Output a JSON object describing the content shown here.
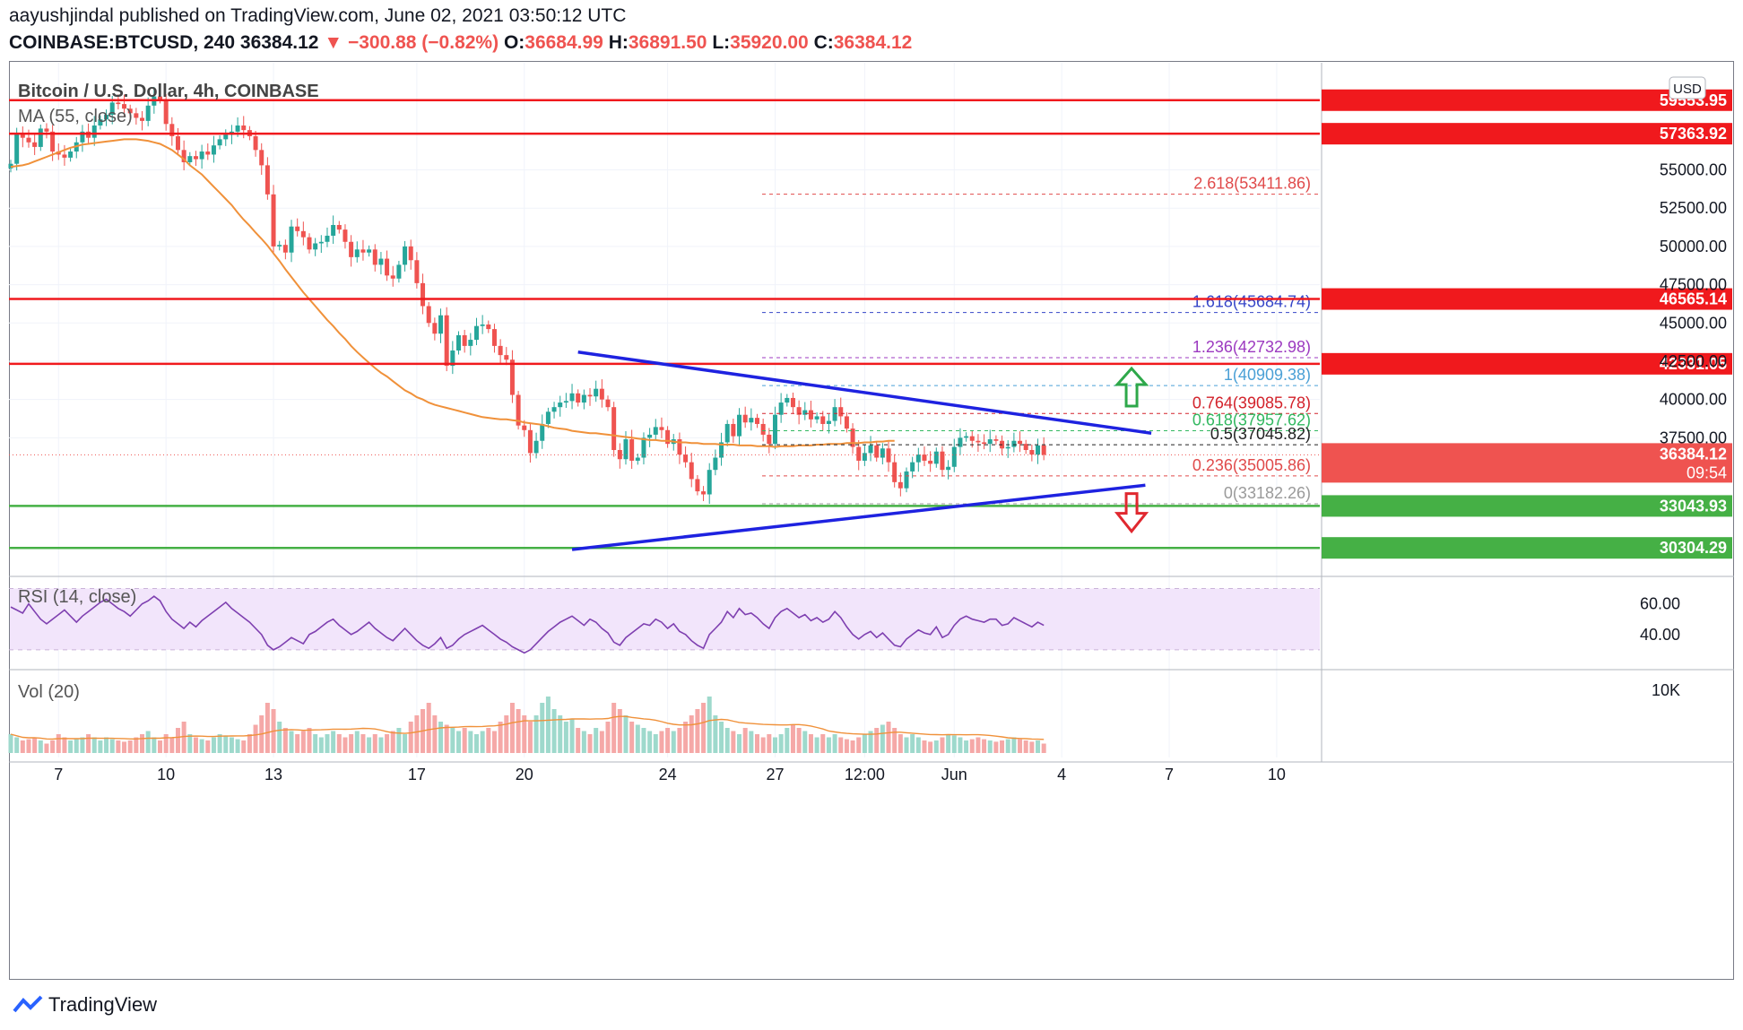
{
  "header": {
    "author": "aayushjindal",
    "published_text": "published on TradingView.com, June 02, 2021 03:50:12 UTC",
    "symbol": "COINBASE:BTCUSD, 240",
    "last": "36384.12",
    "change_arrow": "▼",
    "change": "−300.88 (−0.82%)",
    "o_label": "O:",
    "o": "36684.99",
    "h_label": "H:",
    "h": "36891.50",
    "l_label": "L:",
    "l": "35920.00",
    "c_label": "C:",
    "c": "36384.12"
  },
  "footer": {
    "brand": "TradingView"
  },
  "colors": {
    "up": "#26a69a",
    "down": "#ef5350",
    "ma": "#f0913a",
    "trend": "#1e22e0",
    "res": "#f0191d",
    "sup": "#45b045"
  },
  "chart_data": {
    "type": "candlestick",
    "title": "Bitcoin / U.S. Dollar, 4h, COINBASE",
    "indicator_label": "MA (55, close)",
    "currency_badge": "USD",
    "ylim": [
      28500,
      62000
    ],
    "y_ticks": [
      "37500.00",
      "40000.00",
      "42500.00",
      "45000.00",
      "47500.00",
      "50000.00",
      "52500.00",
      "55000.00"
    ],
    "x_ticks": [
      {
        "label": "7",
        "i": 8
      },
      {
        "label": "10",
        "i": 26
      },
      {
        "label": "13",
        "i": 44
      },
      {
        "label": "17",
        "i": 68
      },
      {
        "label": "20",
        "i": 86
      },
      {
        "label": "24",
        "i": 110
      },
      {
        "label": "27",
        "i": 128
      },
      {
        "label": "12:00",
        "i": 143
      },
      {
        "label": "Jun",
        "i": 158
      },
      {
        "label": "4",
        "i": 176
      },
      {
        "label": "7",
        "i": 194
      },
      {
        "label": "10",
        "i": 212
      }
    ],
    "closes": [
      55400,
      57400,
      57100,
      56800,
      56500,
      57700,
      57500,
      56200,
      56000,
      55800,
      56200,
      56800,
      57500,
      57100,
      57900,
      58300,
      58600,
      59400,
      59300,
      59000,
      58700,
      58400,
      58200,
      59200,
      59800,
      59600,
      58000,
      57200,
      56300,
      55500,
      55900,
      55700,
      56200,
      56000,
      56600,
      57000,
      57300,
      57500,
      57900,
      57600,
      57200,
      56300,
      55300,
      53400,
      50000,
      50100,
      49600,
      51300,
      51000,
      50600,
      49800,
      50200,
      50300,
      50700,
      51400,
      51100,
      50300,
      49300,
      49800,
      49600,
      49800,
      48800,
      49200,
      48100,
      47900,
      48800,
      50000,
      49100,
      47600,
      46100,
      45000,
      44300,
      45500,
      42200,
      43200,
      44200,
      43500,
      43900,
      44800,
      44900,
      44600,
      43500,
      42900,
      42600,
      40300,
      38300,
      38000,
      36500,
      37300,
      38400,
      39200,
      39500,
      39800,
      39900,
      40400,
      39800,
      40300,
      40200,
      40700,
      40000,
      39500,
      36700,
      36100,
      37400,
      36000,
      36200,
      37500,
      37700,
      38200,
      38000,
      37100,
      37400,
      36400,
      35900,
      34800,
      34000,
      33800,
      35400,
      36200,
      37200,
      38400,
      37600,
      39000,
      38500,
      38800,
      38400,
      37700,
      37100,
      39000,
      39800,
      40100,
      39500,
      39000,
      39300,
      38700,
      38900,
      38400,
      38600,
      39500,
      38900,
      38100,
      36900,
      36000,
      36500,
      37000,
      36200,
      36800,
      35900,
      34600,
      34200,
      35300,
      35900,
      36400,
      36000,
      35800,
      36600,
      35400,
      35600,
      36900,
      37500,
      37600,
      37300,
      37200,
      37100,
      37400,
      37300,
      36800,
      36900,
      37300,
      37100,
      36700,
      36400,
      37000,
      36384
    ],
    "ma55": [
      55200,
      55250,
      55300,
      55400,
      55550,
      55700,
      55850,
      56000,
      56150,
      56300,
      56450,
      56550,
      56650,
      56700,
      56750,
      56800,
      56850,
      56900,
      56950,
      57000,
      57000,
      57000,
      56950,
      56900,
      56800,
      56700,
      56500,
      56300,
      56000,
      55700,
      55300,
      55000,
      54700,
      54300,
      53900,
      53500,
      53100,
      52700,
      52200,
      51750,
      51350,
      50900,
      50500,
      50050,
      49550,
      49050,
      48500,
      48000,
      47500,
      47000,
      46550,
      46100,
      45650,
      45200,
      44800,
      44350,
      43950,
      43500,
      43100,
      42750,
      42400,
      42050,
      41750,
      41500,
      41200,
      40900,
      40600,
      40400,
      40150,
      40000,
      39800,
      39650,
      39550,
      39450,
      39350,
      39250,
      39150,
      39050,
      38950,
      38850,
      38800,
      38750,
      38700,
      38700,
      38650,
      38600,
      38500,
      38450,
      38400,
      38350,
      38250,
      38150,
      38100,
      38050,
      37950,
      37900,
      37850,
      37800,
      37800,
      37750,
      37700,
      37650,
      37600,
      37550,
      37500,
      37450,
      37400,
      37350,
      37350,
      37300,
      37300,
      37250,
      37200,
      37200,
      37150,
      37150,
      37100,
      37100,
      37100,
      37050,
      37050,
      37050,
      37000,
      37000,
      37000,
      36950,
      36950,
      36950,
      36900,
      36950,
      36950,
      36950,
      37000,
      37000,
      37000,
      37050,
      37050,
      37100,
      37100,
      37100,
      37150,
      37150,
      37150,
      37200,
      37200,
      37250,
      37250,
      37300,
      37300
    ],
    "rsi": [
      58,
      56,
      54,
      60,
      55,
      50,
      47,
      50,
      53,
      56,
      52,
      48,
      52,
      55,
      58,
      61,
      63,
      60,
      57,
      55,
      52,
      56,
      60,
      62,
      65,
      62,
      55,
      50,
      47,
      44,
      48,
      45,
      49,
      52,
      55,
      58,
      61,
      57,
      54,
      51,
      48,
      44,
      40,
      33,
      30,
      32,
      35,
      38,
      36,
      34,
      40,
      42,
      45,
      48,
      50,
      46,
      43,
      40,
      42,
      45,
      48,
      44,
      41,
      38,
      36,
      40,
      44,
      40,
      36,
      33,
      31,
      34,
      38,
      31,
      33,
      37,
      40,
      42,
      44,
      46,
      43,
      40,
      37,
      35,
      32,
      30,
      28,
      30,
      34,
      38,
      42,
      45,
      48,
      50,
      52,
      49,
      46,
      50,
      48,
      44,
      41,
      35,
      33,
      38,
      41,
      44,
      47,
      46,
      50,
      48,
      44,
      47,
      42,
      40,
      36,
      33,
      31,
      40,
      44,
      48,
      55,
      51,
      57,
      53,
      54,
      51,
      47,
      44,
      51,
      55,
      57,
      54,
      51,
      53,
      49,
      51,
      48,
      50,
      55,
      51,
      45,
      40,
      37,
      40,
      42,
      38,
      41,
      37,
      33,
      32,
      37,
      40,
      43,
      41,
      40,
      45,
      38,
      40,
      46,
      50,
      52,
      50,
      49,
      48,
      50,
      50,
      46,
      47,
      51,
      49,
      47,
      45,
      48,
      46
    ],
    "rsi_ticks": [
      "60.00",
      "40.00"
    ],
    "rsi_label": "RSI (14, close)",
    "volume": [
      3,
      2.5,
      2,
      2.2,
      2.5,
      2,
      1.5,
      2,
      3,
      2.5,
      2,
      2.2,
      2.5,
      3,
      2.5,
      2,
      2.5,
      2.2,
      2,
      1.8,
      2,
      2.5,
      3,
      3.5,
      2.5,
      2,
      3,
      2.5,
      4,
      5,
      3,
      2.5,
      2.2,
      2,
      2.5,
      3,
      2.8,
      2.5,
      2.2,
      2,
      3,
      4.5,
      6,
      8,
      7,
      5,
      4,
      3.5,
      3,
      3.5,
      4,
      3,
      2.5,
      3,
      3.5,
      3,
      2.5,
      3,
      3.5,
      3,
      2.5,
      3,
      2.5,
      3,
      3.5,
      4,
      3,
      5,
      6,
      7,
      8,
      6,
      5,
      4.5,
      4,
      3.5,
      4,
      3.5,
      3,
      3.5,
      4,
      3.5,
      5,
      6,
      8,
      7,
      6,
      5,
      6,
      8,
      9,
      7,
      6,
      5,
      5.5,
      4,
      3.5,
      3,
      4,
      3.5,
      5,
      8,
      7,
      6,
      5,
      4.5,
      4,
      3.5,
      3,
      3.5,
      4,
      3.5,
      4,
      5,
      6,
      7,
      8,
      9,
      6,
      5,
      4,
      3.5,
      3,
      4,
      3.5,
      3,
      2.5,
      3,
      2.5,
      3,
      4,
      4.5,
      4,
      3.5,
      3,
      2.5,
      3,
      2.5,
      3,
      2.5,
      2.2,
      2,
      2.5,
      3,
      3.5,
      4,
      4.5,
      5,
      4,
      3,
      2.5,
      3,
      2.5,
      2,
      1.8,
      2,
      2.5,
      3,
      2.8,
      2.5,
      2,
      2.2,
      2.5,
      2.2,
      2,
      1.8,
      2,
      2.2,
      2.5,
      2.2,
      2,
      1.8,
      2,
      1.5
    ],
    "volume_label": "Vol (20)",
    "volume_tick": "10K",
    "h_lines": [
      {
        "price": 59553.95,
        "label": "59553.95",
        "color": "res"
      },
      {
        "price": 57363.92,
        "label": "57363.92",
        "color": "res"
      },
      {
        "price": 46565.14,
        "label": "46565.14",
        "color": "res"
      },
      {
        "price": 42331.05,
        "label": "42331.05",
        "color": "res"
      },
      {
        "price": 33043.93,
        "label": "33043.93",
        "color": "sup"
      },
      {
        "price": 30304.29,
        "label": "30304.29",
        "color": "sup"
      }
    ],
    "last_price": {
      "label": "36384.12",
      "timer": "09:54"
    },
    "fib": [
      {
        "text": "2.618(53411.86)",
        "price": 53411.86,
        "color": "#e04a4a"
      },
      {
        "text": "1.618(45684.74)",
        "price": 45684.74,
        "color": "#3646c8"
      },
      {
        "text": "1.236(42732.98)",
        "price": 42732.98,
        "color": "#9c3ac0"
      },
      {
        "text": "1(40909.38)",
        "price": 40909.38,
        "color": "#4aa0d6"
      },
      {
        "text": "0.764(39085.78)",
        "price": 39085.78,
        "color": "#d3222a"
      },
      {
        "text": "0.618(37957.62)",
        "price": 37957.62,
        "color": "#32b860"
      },
      {
        "text": "0.5(37045.82)",
        "price": 37045.82,
        "color": "#222222"
      },
      {
        "text": "0.236(35005.86)",
        "price": 35005.86,
        "color": "#e04a4a"
      },
      {
        "text": "0(33182.26)",
        "price": 33182.26,
        "color": "#9a9a9a"
      }
    ],
    "trendlines": [
      {
        "from": {
          "i": 95,
          "price": 43100
        },
        "to": {
          "i": 191,
          "price": 37800
        }
      },
      {
        "from": {
          "i": 94,
          "price": 30200
        },
        "to": {
          "i": 190,
          "price": 34400
        }
      }
    ]
  }
}
